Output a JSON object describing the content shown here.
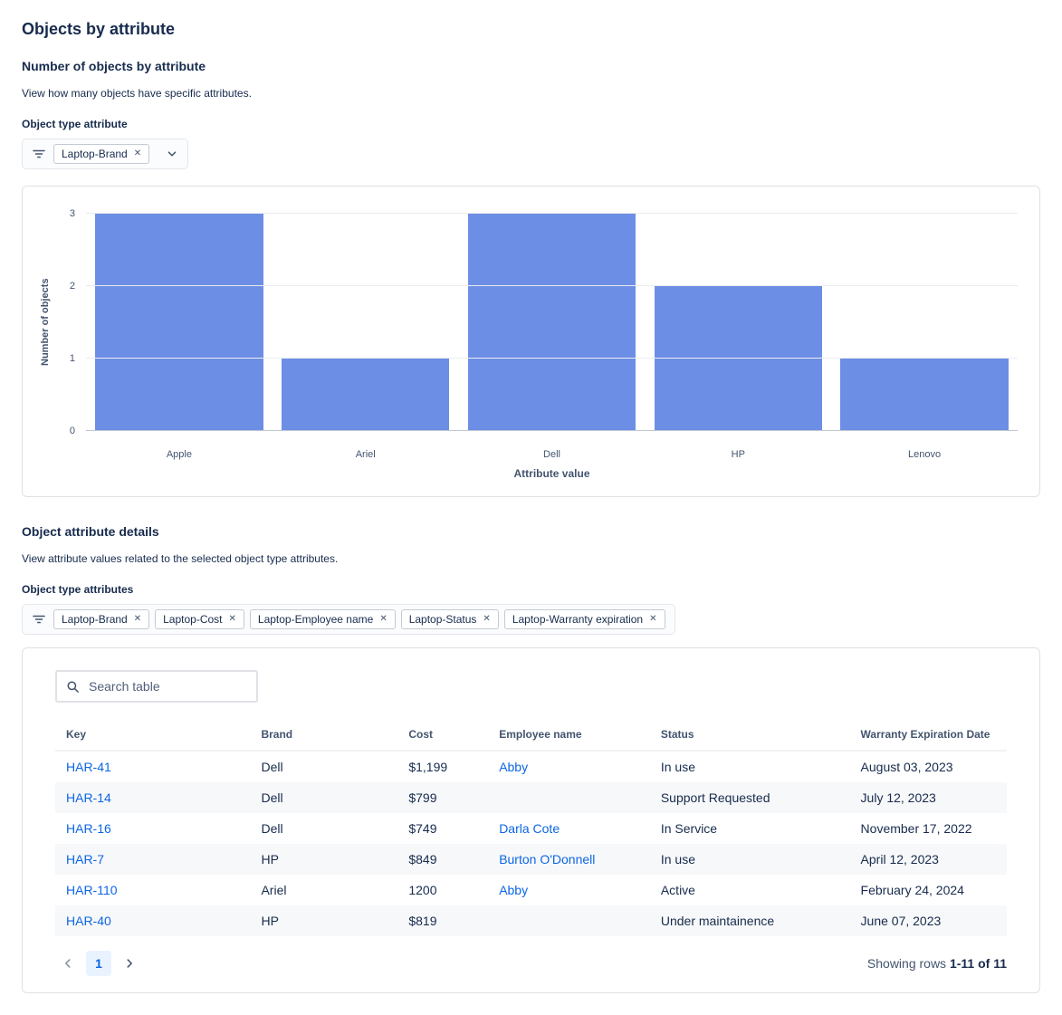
{
  "page": {
    "title": "Objects by attribute"
  },
  "icons": {
    "chip_remove": "✕"
  },
  "colors": {
    "link": "#0C66E4",
    "pagination_active_bg": "#E9F2FF",
    "zebra_row": "#F7F8F9"
  },
  "chart_section": {
    "heading": "Number of objects by attribute",
    "description": "View how many objects have specific attributes.",
    "filter_label": "Object type attribute",
    "filter_chips": [
      {
        "label": "Laptop-Brand"
      }
    ]
  },
  "chart_data": {
    "type": "bar",
    "categories": [
      "Apple",
      "Ariel",
      "Dell",
      "HP",
      "Lenovo"
    ],
    "values": [
      3,
      1,
      3,
      2,
      1
    ],
    "title": "",
    "xlabel": "Attribute value",
    "ylabel": "Number of objects",
    "ylim": [
      0,
      3
    ],
    "yticks": [
      0,
      1,
      2,
      3
    ],
    "bar_color": "#6C8EE4",
    "grid": true,
    "legend": false
  },
  "details_section": {
    "heading": "Object attribute details",
    "description": "View attribute values related to the selected object type attributes.",
    "filter_label": "Object type attributes",
    "filter_chips": [
      {
        "label": "Laptop-Brand"
      },
      {
        "label": "Laptop-Cost"
      },
      {
        "label": "Laptop-Employee name"
      },
      {
        "label": "Laptop-Status"
      },
      {
        "label": "Laptop-Warranty expiration"
      }
    ]
  },
  "table": {
    "search_placeholder": "Search table",
    "columns": [
      "Key",
      "Brand",
      "Cost",
      "Employee name",
      "Status",
      "Warranty Expiration Date"
    ],
    "rows": [
      {
        "key": "HAR-41",
        "brand": "Dell",
        "cost": "$1,199",
        "employee": "Abby",
        "status": "In use",
        "warranty": "August 03, 2023"
      },
      {
        "key": "HAR-14",
        "brand": "Dell",
        "cost": "$799",
        "employee": "",
        "status": "Support Requested",
        "warranty": "July 12, 2023"
      },
      {
        "key": "HAR-16",
        "brand": "Dell",
        "cost": "$749",
        "employee": "Darla Cote",
        "status": "In Service",
        "warranty": "November 17, 2022"
      },
      {
        "key": "HAR-7",
        "brand": "HP",
        "cost": "$849",
        "employee": "Burton O'Donnell",
        "status": "In use",
        "warranty": "April 12, 2023"
      },
      {
        "key": "HAR-110",
        "brand": "Ariel",
        "cost": "1200",
        "employee": "Abby",
        "status": "Active",
        "warranty": "February 24, 2024"
      },
      {
        "key": "HAR-40",
        "brand": "HP",
        "cost": "$819",
        "employee": "",
        "status": "Under maintainence",
        "warranty": "June 07, 2023"
      }
    ],
    "pagination": {
      "current_page": "1",
      "summary_prefix": "Showing rows",
      "summary_range": "1-11 of 11"
    }
  }
}
